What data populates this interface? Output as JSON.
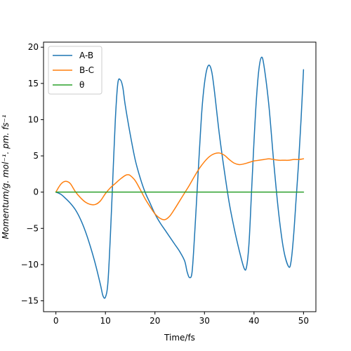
{
  "chart_data": {
    "type": "line",
    "title": "",
    "xlabel": "Time/fs",
    "ylabel": "Momentum/g. mol⁻¹. pm. fs⁻¹",
    "xlim": [
      -2.5,
      52.5
    ],
    "ylim": [
      -16.5,
      20.7
    ],
    "xticks": [
      0,
      10,
      20,
      30,
      40,
      50
    ],
    "yticks": [
      -15,
      -10,
      -5,
      0,
      5,
      10,
      15,
      20
    ],
    "grid": false,
    "legend_position": "top-left",
    "series": [
      {
        "name": "A-B",
        "color": "#1f77b4",
        "points": [
          [
            0,
            0
          ],
          [
            1,
            -0.3
          ],
          [
            2,
            -0.9
          ],
          [
            3,
            -1.6
          ],
          [
            4,
            -2.5
          ],
          [
            5,
            -3.8
          ],
          [
            6,
            -5.5
          ],
          [
            7,
            -7.6
          ],
          [
            8,
            -10.0
          ],
          [
            9,
            -12.8
          ],
          [
            9.5,
            -14.3
          ],
          [
            10,
            -14.5
          ],
          [
            10.5,
            -12.5
          ],
          [
            11,
            -6.0
          ],
          [
            11.5,
            2.0
          ],
          [
            12,
            10.0
          ],
          [
            12.5,
            15.0
          ],
          [
            13,
            15.5
          ],
          [
            13.5,
            14.5
          ],
          [
            14,
            12.0
          ],
          [
            15,
            8.0
          ],
          [
            16,
            4.5
          ],
          [
            17,
            2.0
          ],
          [
            18,
            0.0
          ],
          [
            19,
            -1.5
          ],
          [
            20,
            -3.0
          ],
          [
            21,
            -4.2
          ],
          [
            22,
            -5.2
          ],
          [
            23,
            -6.2
          ],
          [
            24,
            -7.2
          ],
          [
            25,
            -8.2
          ],
          [
            26,
            -9.5
          ],
          [
            26.5,
            -11.0
          ],
          [
            27,
            -11.8
          ],
          [
            27.5,
            -11.0
          ],
          [
            28,
            -6.0
          ],
          [
            28.5,
            0.0
          ],
          [
            29,
            6.0
          ],
          [
            29.5,
            11.5
          ],
          [
            30,
            15.0
          ],
          [
            30.5,
            17.0
          ],
          [
            31,
            17.5
          ],
          [
            31.5,
            16.5
          ],
          [
            32,
            14.0
          ],
          [
            33,
            8.0
          ],
          [
            34,
            3.0
          ],
          [
            35,
            -1.5
          ],
          [
            36,
            -5.0
          ],
          [
            37,
            -8.0
          ],
          [
            38,
            -10.5
          ],
          [
            38.5,
            -10.3
          ],
          [
            39,
            -7.0
          ],
          [
            39.5,
            0.0
          ],
          [
            40,
            7.0
          ],
          [
            40.5,
            13.0
          ],
          [
            41,
            17.0
          ],
          [
            41.5,
            18.6
          ],
          [
            42,
            17.5
          ],
          [
            43,
            12.0
          ],
          [
            44,
            4.0
          ],
          [
            45,
            -3.0
          ],
          [
            46,
            -8.0
          ],
          [
            47,
            -10.3
          ],
          [
            47.5,
            -9.5
          ],
          [
            48,
            -6.0
          ],
          [
            48.5,
            -1.0
          ],
          [
            49,
            4.0
          ],
          [
            49.5,
            10.0
          ],
          [
            50,
            16.9
          ]
        ]
      },
      {
        "name": "B-C",
        "color": "#ff7f0e",
        "points": [
          [
            0,
            0
          ],
          [
            0.5,
            0.6
          ],
          [
            1,
            1.1
          ],
          [
            1.5,
            1.4
          ],
          [
            2,
            1.5
          ],
          [
            2.5,
            1.4
          ],
          [
            3,
            1.1
          ],
          [
            4,
            0.0
          ],
          [
            5,
            -0.8
          ],
          [
            6,
            -1.4
          ],
          [
            7,
            -1.7
          ],
          [
            8,
            -1.7
          ],
          [
            9,
            -1.2
          ],
          [
            10,
            -0.2
          ],
          [
            11,
            0.6
          ],
          [
            12,
            1.2
          ],
          [
            13,
            1.8
          ],
          [
            14,
            2.3
          ],
          [
            14.5,
            2.4
          ],
          [
            15,
            2.3
          ],
          [
            16,
            1.6
          ],
          [
            17,
            0.4
          ],
          [
            18,
            -0.9
          ],
          [
            19,
            -2.0
          ],
          [
            20,
            -3.0
          ],
          [
            21,
            -3.6
          ],
          [
            22,
            -3.8
          ],
          [
            23,
            -3.3
          ],
          [
            24,
            -2.3
          ],
          [
            25,
            -1.2
          ],
          [
            26,
            -0.1
          ],
          [
            27,
            1.0
          ],
          [
            28,
            2.2
          ],
          [
            29,
            3.3
          ],
          [
            30,
            4.2
          ],
          [
            31,
            4.9
          ],
          [
            32,
            5.3
          ],
          [
            33,
            5.4
          ],
          [
            34,
            5.1
          ],
          [
            35,
            4.5
          ],
          [
            36,
            4.0
          ],
          [
            37,
            3.8
          ],
          [
            38,
            3.9
          ],
          [
            39,
            4.1
          ],
          [
            40,
            4.3
          ],
          [
            41,
            4.4
          ],
          [
            42,
            4.5
          ],
          [
            43,
            4.6
          ],
          [
            44,
            4.5
          ],
          [
            45,
            4.4
          ],
          [
            46,
            4.4
          ],
          [
            47,
            4.4
          ],
          [
            48,
            4.5
          ],
          [
            49,
            4.5
          ],
          [
            50,
            4.6
          ]
        ]
      },
      {
        "name": "θ",
        "color": "#2ca02c",
        "points": [
          [
            0,
            0
          ],
          [
            50,
            0
          ]
        ]
      }
    ]
  }
}
